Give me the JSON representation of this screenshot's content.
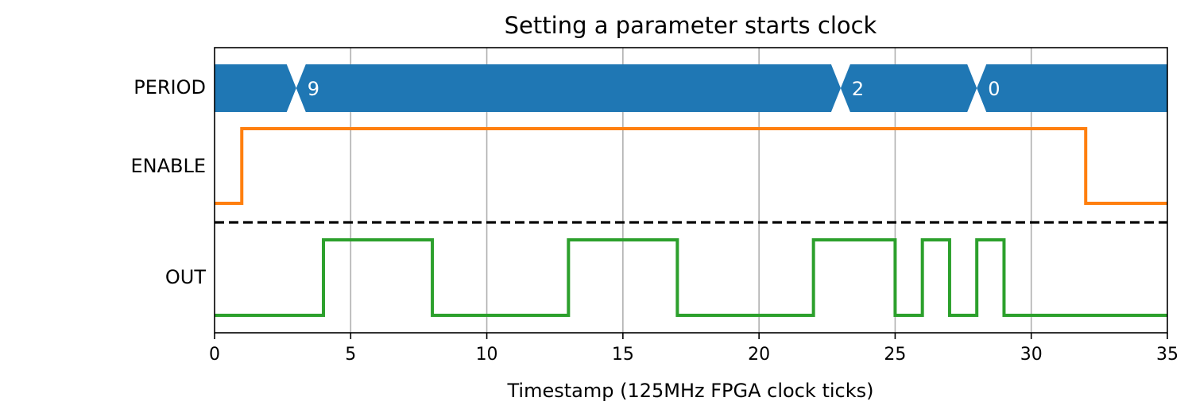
{
  "chart_data": {
    "type": "line",
    "title": "Setting a parameter starts clock",
    "xlabel": "Timestamp (125MHz FPGA clock ticks)",
    "xlim": [
      0,
      35
    ],
    "xticks": [
      0,
      5,
      10,
      15,
      20,
      25,
      30,
      35
    ],
    "grid": "vertical",
    "rows": [
      "PERIOD",
      "ENABLE",
      "OUT"
    ],
    "period_bus": {
      "name": "PERIOD",
      "color": "#1f77b4",
      "segments": [
        {
          "start": 0,
          "end": 3,
          "label": ""
        },
        {
          "start": 3,
          "end": 23,
          "label": "9"
        },
        {
          "start": 23,
          "end": 28,
          "label": "2"
        },
        {
          "start": 28,
          "end": 35,
          "label": "0"
        }
      ]
    },
    "series": [
      {
        "name": "ENABLE",
        "color": "#ff7f0e",
        "steps": [
          [
            0,
            0
          ],
          [
            1,
            1
          ],
          [
            32,
            0
          ],
          [
            35,
            0
          ]
        ]
      },
      {
        "name": "OUT",
        "color": "#2ca02c",
        "steps": [
          [
            0,
            0
          ],
          [
            4,
            1
          ],
          [
            8,
            0
          ],
          [
            13,
            1
          ],
          [
            17,
            0
          ],
          [
            22,
            1
          ],
          [
            25,
            0
          ],
          [
            26,
            1
          ],
          [
            27,
            0
          ],
          [
            28,
            1
          ],
          [
            29,
            0
          ],
          [
            35,
            0
          ]
        ]
      }
    ],
    "separator": {
      "style": "dashed",
      "color": "#000000"
    }
  }
}
